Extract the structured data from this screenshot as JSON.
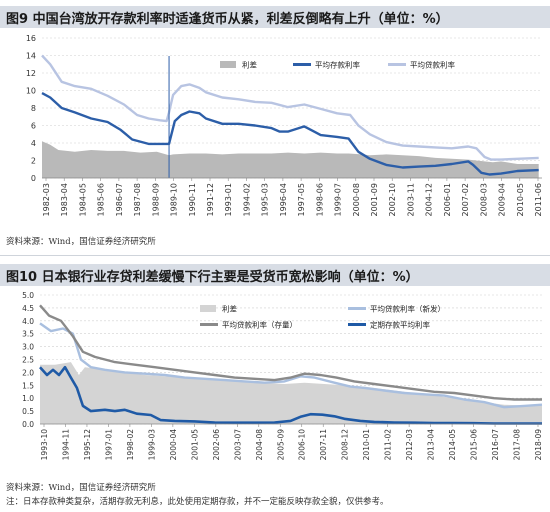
{
  "fig1": {
    "title": "图9  中国台湾放开存款利率时适逢货币从紧，利差反倒略有上升（单位：%）",
    "source": "资料来源：Wind，国信证券经济研究所"
  },
  "fig2": {
    "title": "图10  日本银行业存贷利差缓慢下行主要是受货币宽松影响（单位：%）",
    "source": "资料来源：Wind，国信证券经济研究所",
    "note": "注：日本存款种类复杂，活期存款无利息，此处使用定期存款，并不一定能反映存款全貌，仅供参考。"
  },
  "chart_data": [
    {
      "type": "line",
      "title": "",
      "xlabel": "",
      "ylabel": "",
      "ylim": [
        0,
        16
      ],
      "yticks": [
        0,
        2,
        4,
        6,
        8,
        10,
        12,
        14,
        16
      ],
      "xlim": [
        1982.0,
        2012.5
      ],
      "xtick_labels": [
        "1982-03",
        "1983-04",
        "1984-05",
        "1985-06",
        "1986-07",
        "1987-08",
        "1988-09",
        "1989-10",
        "1990-11",
        "1991-12",
        "1993-01",
        "1994-02",
        "1995-03",
        "1996-04",
        "1997-05",
        "1998-06",
        "1999-07",
        "2000-08",
        "2001-09",
        "2002-10",
        "2003-11",
        "2004-12",
        "2006-01",
        "2007-02",
        "2008-03",
        "2009-04",
        "2010-05",
        "2011-06"
      ],
      "grid": "horizontal",
      "legend_position": "top",
      "vline_x": 1989.75,
      "series": [
        {
          "name": "利差",
          "kind": "area",
          "color": "#b9b9b9",
          "x": [
            1982.0,
            1982.5,
            1983,
            1984,
            1985,
            1986,
            1987,
            1988,
            1989,
            1989.75,
            1990,
            1991,
            1992,
            1993,
            1994,
            1995,
            1996,
            1997,
            1998,
            1999,
            2000,
            2000.7,
            2001.5,
            2002,
            2003,
            2004,
            2005,
            2006,
            2007,
            2008,
            2008.5,
            2009,
            2009.5,
            2010,
            2011,
            2012.3
          ],
          "y": [
            4.2,
            3.8,
            3.2,
            3.0,
            3.2,
            3.1,
            3.1,
            2.9,
            3.0,
            2.6,
            2.7,
            2.8,
            2.8,
            2.7,
            2.8,
            2.8,
            2.8,
            2.9,
            2.8,
            2.9,
            2.8,
            2.8,
            2.7,
            2.6,
            2.7,
            2.6,
            2.5,
            2.3,
            2.2,
            2.1,
            2.0,
            1.9,
            1.8,
            1.9,
            1.6,
            1.6
          ]
        },
        {
          "name": "平均存款利率",
          "kind": "line",
          "color": "#2c5ea8",
          "x": [
            1982.0,
            1982.5,
            1983.2,
            1984,
            1985,
            1986,
            1986.8,
            1987.5,
            1988.5,
            1989.5,
            1989.75,
            1990.1,
            1990.5,
            1991,
            1991.6,
            1992,
            1993,
            1994,
            1995,
            1996,
            1996.5,
            1997,
            1997.5,
            1998,
            1998.6,
            1999,
            2000,
            2000.7,
            2001.3,
            2002,
            2003,
            2004,
            2005,
            2006,
            2007,
            2008,
            2008.3,
            2008.8,
            2009.3,
            2010,
            2011,
            2012.3
          ],
          "y": [
            9.7,
            9.2,
            8.0,
            7.5,
            6.8,
            6.4,
            5.5,
            4.4,
            3.9,
            3.9,
            3.9,
            6.5,
            7.2,
            7.6,
            7.4,
            6.8,
            6.2,
            6.2,
            6.0,
            5.7,
            5.3,
            5.3,
            5.6,
            5.9,
            5.3,
            4.9,
            4.7,
            4.5,
            3.0,
            2.2,
            1.5,
            1.2,
            1.3,
            1.4,
            1.6,
            1.9,
            1.5,
            0.6,
            0.4,
            0.5,
            0.8,
            0.9
          ]
        },
        {
          "name": "平均贷款利率",
          "kind": "line",
          "color": "#b8c4e2",
          "x": [
            1982.0,
            1982.5,
            1983.2,
            1984,
            1985,
            1986,
            1987,
            1987.8,
            1988.5,
            1989.2,
            1989.6,
            1989.75,
            1990.0,
            1990.5,
            1991,
            1991.6,
            1992,
            1993,
            1994,
            1995,
            1996,
            1997,
            1998,
            1999,
            2000,
            2000.8,
            2001.3,
            2002,
            2003,
            2004,
            2005,
            2006,
            2007,
            2008,
            2008.5,
            2009.0,
            2009.4,
            2010,
            2011,
            2012.3
          ],
          "y": [
            14.0,
            13.0,
            11.0,
            10.5,
            10.2,
            9.4,
            8.4,
            7.2,
            6.8,
            6.6,
            6.5,
            7.5,
            9.5,
            10.5,
            10.7,
            10.3,
            9.8,
            9.2,
            9.0,
            8.7,
            8.6,
            8.1,
            8.4,
            7.9,
            7.4,
            7.2,
            6.0,
            5.0,
            4.1,
            3.7,
            3.6,
            3.5,
            3.4,
            3.6,
            3.4,
            2.4,
            2.1,
            2.1,
            2.2,
            2.3
          ]
        }
      ]
    },
    {
      "type": "line",
      "title": "",
      "xlabel": "",
      "ylabel": "",
      "ylim": [
        0,
        5
      ],
      "yticks": [
        0.0,
        0.5,
        1.0,
        1.5,
        2.0,
        2.5,
        3.0,
        3.5,
        4.0,
        4.5,
        5.0
      ],
      "xlim": [
        1993.75,
        2018.9
      ],
      "xtick_labels": [
        "1993-10",
        "1994-11",
        "1995-12",
        "1997-01",
        "1998-02",
        "1999-03",
        "2000-04",
        "2001-05",
        "2002-06",
        "2003-07",
        "2004-08",
        "2005-09",
        "2006-10",
        "2007-11",
        "2008-12",
        "2010-01",
        "2011-02",
        "2012-03",
        "2013-04",
        "2014-05",
        "2015-06",
        "2016-07",
        "2017-08",
        "2018-09"
      ],
      "grid": "horizontal",
      "legend_position": "top",
      "series": [
        {
          "name": "利差",
          "kind": "area",
          "color": "#d4d4d4",
          "x": [
            1993.75,
            1994.5,
            1995.3,
            1995.7,
            1996,
            1997,
            1998,
            1999,
            2000,
            2001,
            2002,
            2003,
            2004,
            2005,
            2006,
            2007,
            2008,
            2009,
            2010,
            2011,
            2012,
            2013,
            2014,
            2015,
            2016,
            2017,
            2018,
            2018.9
          ],
          "y": [
            2.3,
            2.3,
            2.4,
            1.9,
            2.2,
            2.1,
            2.0,
            1.9,
            1.85,
            1.8,
            1.75,
            1.7,
            1.65,
            1.6,
            1.55,
            1.6,
            1.55,
            1.5,
            1.45,
            1.35,
            1.25,
            1.15,
            1.05,
            0.95,
            0.85,
            0.75,
            0.72,
            0.7
          ]
        },
        {
          "name": "平均贷款利率（新发）",
          "kind": "line",
          "color": "#a9bfdf",
          "x": [
            1993.75,
            1994.3,
            1994.9,
            1995.4,
            1995.8,
            1996.3,
            1997,
            1998,
            1999,
            2000,
            2001,
            2002,
            2003,
            2004,
            2005,
            2006,
            2006.8,
            2007.5,
            2008.5,
            2009.3,
            2010,
            2011,
            2012,
            2013,
            2014,
            2015,
            2016,
            2017,
            2018,
            2018.9
          ],
          "y": [
            3.9,
            3.6,
            3.7,
            3.5,
            2.5,
            2.2,
            2.1,
            2.0,
            1.95,
            1.9,
            1.8,
            1.75,
            1.7,
            1.65,
            1.6,
            1.65,
            1.85,
            1.8,
            1.6,
            1.45,
            1.4,
            1.3,
            1.2,
            1.15,
            1.1,
            0.95,
            0.85,
            0.65,
            0.7,
            0.75
          ]
        },
        {
          "name": "平均贷款利率（存量）",
          "kind": "line",
          "color": "#8a8a8a",
          "x": [
            1993.75,
            1994.2,
            1994.8,
            1995.4,
            1995.9,
            1996.5,
            1997.5,
            1998.5,
            1999.5,
            2000.5,
            2001.5,
            2002.5,
            2003.5,
            2004.5,
            2005.5,
            2006.3,
            2007.0,
            2007.8,
            2008.6,
            2009.5,
            2010.5,
            2011.5,
            2012.5,
            2013.5,
            2014.5,
            2015.5,
            2016.5,
            2017.5,
            2018.3,
            2018.9
          ],
          "y": [
            4.6,
            4.2,
            4.0,
            3.4,
            2.8,
            2.6,
            2.4,
            2.3,
            2.2,
            2.1,
            2.0,
            1.9,
            1.8,
            1.75,
            1.7,
            1.8,
            1.95,
            1.9,
            1.8,
            1.65,
            1.55,
            1.45,
            1.35,
            1.25,
            1.2,
            1.1,
            1.0,
            0.95,
            0.95,
            0.95
          ]
        },
        {
          "name": "定期存款平均利率",
          "kind": "line",
          "color": "#1f5aa6",
          "x": [
            1993.75,
            1994.1,
            1994.4,
            1994.7,
            1995.0,
            1995.3,
            1995.6,
            1995.9,
            1996.3,
            1997.0,
            1997.5,
            1998.0,
            1998.6,
            1999.3,
            1999.8,
            2000.5,
            2001.5,
            2002.5,
            2003.5,
            2004.5,
            2005.5,
            2006.3,
            2006.8,
            2007.3,
            2007.9,
            2008.5,
            2009.0,
            2009.8,
            2010.5,
            2011.5,
            2012.5,
            2013.5,
            2014.5,
            2015.5,
            2016.5,
            2017.5,
            2018.9
          ],
          "y": [
            2.2,
            1.9,
            2.1,
            1.9,
            2.2,
            1.8,
            1.4,
            0.7,
            0.5,
            0.55,
            0.5,
            0.55,
            0.4,
            0.35,
            0.15,
            0.12,
            0.1,
            0.06,
            0.05,
            0.05,
            0.06,
            0.12,
            0.28,
            0.38,
            0.36,
            0.3,
            0.2,
            0.12,
            0.08,
            0.06,
            0.05,
            0.04,
            0.04,
            0.03,
            0.02,
            0.02,
            0.02
          ]
        }
      ]
    }
  ]
}
